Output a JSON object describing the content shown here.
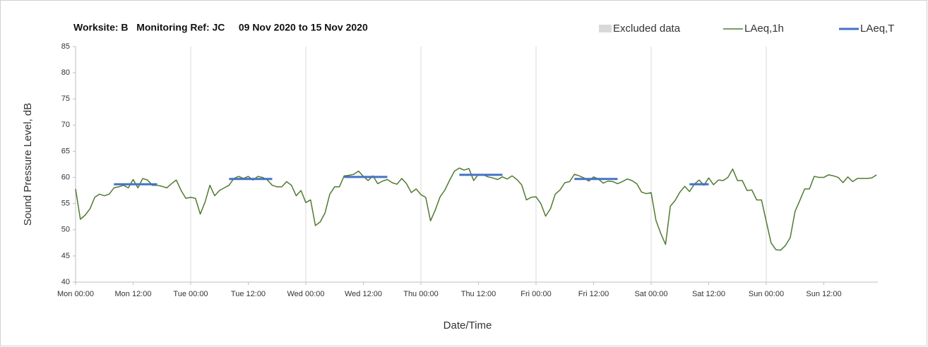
{
  "chart_data": {
    "type": "line",
    "title": "Worksite: B   Monitoring Ref: JC     09 Nov 2020 to 15 Nov 2020",
    "x_label": "Date/Time",
    "y_label": "Sound Pressure Level, dB",
    "xlim": [
      0,
      168
    ],
    "ylim": [
      40,
      85
    ],
    "yticks": [
      40,
      45,
      50,
      55,
      60,
      65,
      70,
      75,
      80,
      85
    ],
    "xticks": [
      {
        "value": 0,
        "label": "Mon 00:00"
      },
      {
        "value": 12,
        "label": "Mon 12:00"
      },
      {
        "value": 24,
        "label": "Tue 00:00"
      },
      {
        "value": 36,
        "label": "Tue 12:00"
      },
      {
        "value": 48,
        "label": "Wed 00:00"
      },
      {
        "value": 60,
        "label": "Wed 12:00"
      },
      {
        "value": 72,
        "label": "Thu 00:00"
      },
      {
        "value": 84,
        "label": "Thu 12:00"
      },
      {
        "value": 96,
        "label": "Fri 00:00"
      },
      {
        "value": 108,
        "label": "Fri 12:00"
      },
      {
        "value": 120,
        "label": "Sat 00:00"
      },
      {
        "value": 132,
        "label": "Sat 12:00"
      },
      {
        "value": 144,
        "label": "Sun 00:00"
      },
      {
        "value": 156,
        "label": "Sun 12:00"
      }
    ],
    "grid": true,
    "excluded_data": {
      "name": "Excluded data",
      "color": "#d9d9d9"
    },
    "series": [
      {
        "name": "LAeq,1h",
        "color": "#507a30",
        "x": [
          0,
          1,
          2,
          3,
          4,
          5,
          6,
          7,
          8,
          9,
          10,
          11,
          12,
          13,
          14,
          15,
          16,
          17,
          18,
          19,
          20,
          21,
          22,
          23,
          24,
          25,
          26,
          27,
          28,
          29,
          30,
          31,
          32,
          33,
          34,
          35,
          36,
          37,
          38,
          39,
          40,
          41,
          42,
          43,
          44,
          45,
          46,
          47,
          48,
          49,
          50,
          51,
          52,
          53,
          54,
          55,
          56,
          57,
          58,
          59,
          60,
          61,
          62,
          63,
          64,
          65,
          66,
          67,
          68,
          69,
          70,
          71,
          72,
          73,
          74,
          75,
          76,
          77,
          78,
          79,
          80,
          81,
          82,
          83,
          84,
          85,
          86,
          87,
          88,
          89,
          90,
          91,
          92,
          93,
          94,
          95,
          96,
          97,
          98,
          99,
          100,
          101,
          102,
          103,
          104,
          105,
          106,
          107,
          108,
          109,
          110,
          111,
          112,
          113,
          114,
          115,
          116,
          117,
          118,
          119,
          120,
          121,
          122,
          123,
          124,
          125,
          126,
          127,
          128,
          129,
          130,
          131,
          132,
          133,
          134,
          135,
          136,
          137,
          138,
          139,
          140,
          141,
          142,
          143,
          144,
          145,
          146,
          147,
          148,
          149,
          150,
          151,
          152,
          153,
          154,
          155,
          156,
          157,
          158,
          159,
          160,
          161,
          162,
          163,
          164,
          165,
          166,
          167
        ],
        "values": [
          57.8,
          52,
          52.8,
          54,
          56.2,
          56.8,
          56.5,
          56.8,
          58,
          58.2,
          58.5,
          58,
          59.6,
          58,
          59.8,
          59.5,
          58.5,
          58.5,
          58.3,
          58,
          58.8,
          59.5,
          57.5,
          56,
          56.2,
          56,
          53,
          55.3,
          58.5,
          56.5,
          57.5,
          58,
          58.5,
          59.8,
          60.2,
          59.8,
          60.2,
          59.5,
          60.2,
          60,
          59.5,
          58.5,
          58.2,
          58.2,
          59.2,
          58.5,
          56.5,
          57.5,
          55.2,
          55.7,
          50.8,
          51.5,
          53.2,
          56.8,
          58.2,
          58.2,
          60.3,
          60.4,
          60.6,
          61.2,
          60.2,
          59.4,
          60.3,
          58.8,
          59.3,
          59.6,
          59,
          58.7,
          59.8,
          58.8,
          57.1,
          57.8,
          56.7,
          56.2,
          51.7,
          53.8,
          56.3,
          57.6,
          59.5,
          61.2,
          61.8,
          61.4,
          61.7,
          59.4,
          60.6,
          60.5,
          60.1,
          59.9,
          59.6,
          60.1,
          59.7,
          60.3,
          59.6,
          58.6,
          55.7,
          56.2,
          56.3,
          55,
          52.6,
          54,
          56.8,
          57.6,
          59,
          59.2,
          60.6,
          60.3,
          59.9,
          59.3,
          60.1,
          59.7,
          58.9,
          59.3,
          59.2,
          58.8,
          59.2,
          59.7,
          59.4,
          58.8,
          57.2,
          56.9,
          57.1,
          51.8,
          49.3,
          47.2,
          54.5,
          55.6,
          57.2,
          58.3,
          57.3,
          58.7,
          59.5,
          58.5,
          59.9,
          58.6,
          59.5,
          59.4,
          60,
          61.6,
          59.4,
          59.4,
          57.5,
          57.6,
          55.7,
          55.7,
          51.6,
          47.5,
          46.2,
          46.1,
          47,
          48.5,
          53.5,
          55.6,
          57.8,
          57.8,
          60.2,
          60,
          60,
          60.5,
          60.3,
          60,
          59,
          60.1,
          59.2,
          59.8,
          59.8,
          59.8,
          59.9,
          60.5
        ]
      },
      {
        "name": "LAeq,T",
        "color": "#4472c4",
        "segments": [
          {
            "start": 8,
            "end": 17,
            "value": 58.7
          },
          {
            "start": 32,
            "end": 41,
            "value": 59.7
          },
          {
            "start": 56,
            "end": 65,
            "value": 60.1
          },
          {
            "start": 80,
            "end": 89,
            "value": 60.5
          },
          {
            "start": 104,
            "end": 113,
            "value": 59.7
          },
          {
            "start": 128,
            "end": 132,
            "value": 58.7
          }
        ]
      }
    ]
  }
}
